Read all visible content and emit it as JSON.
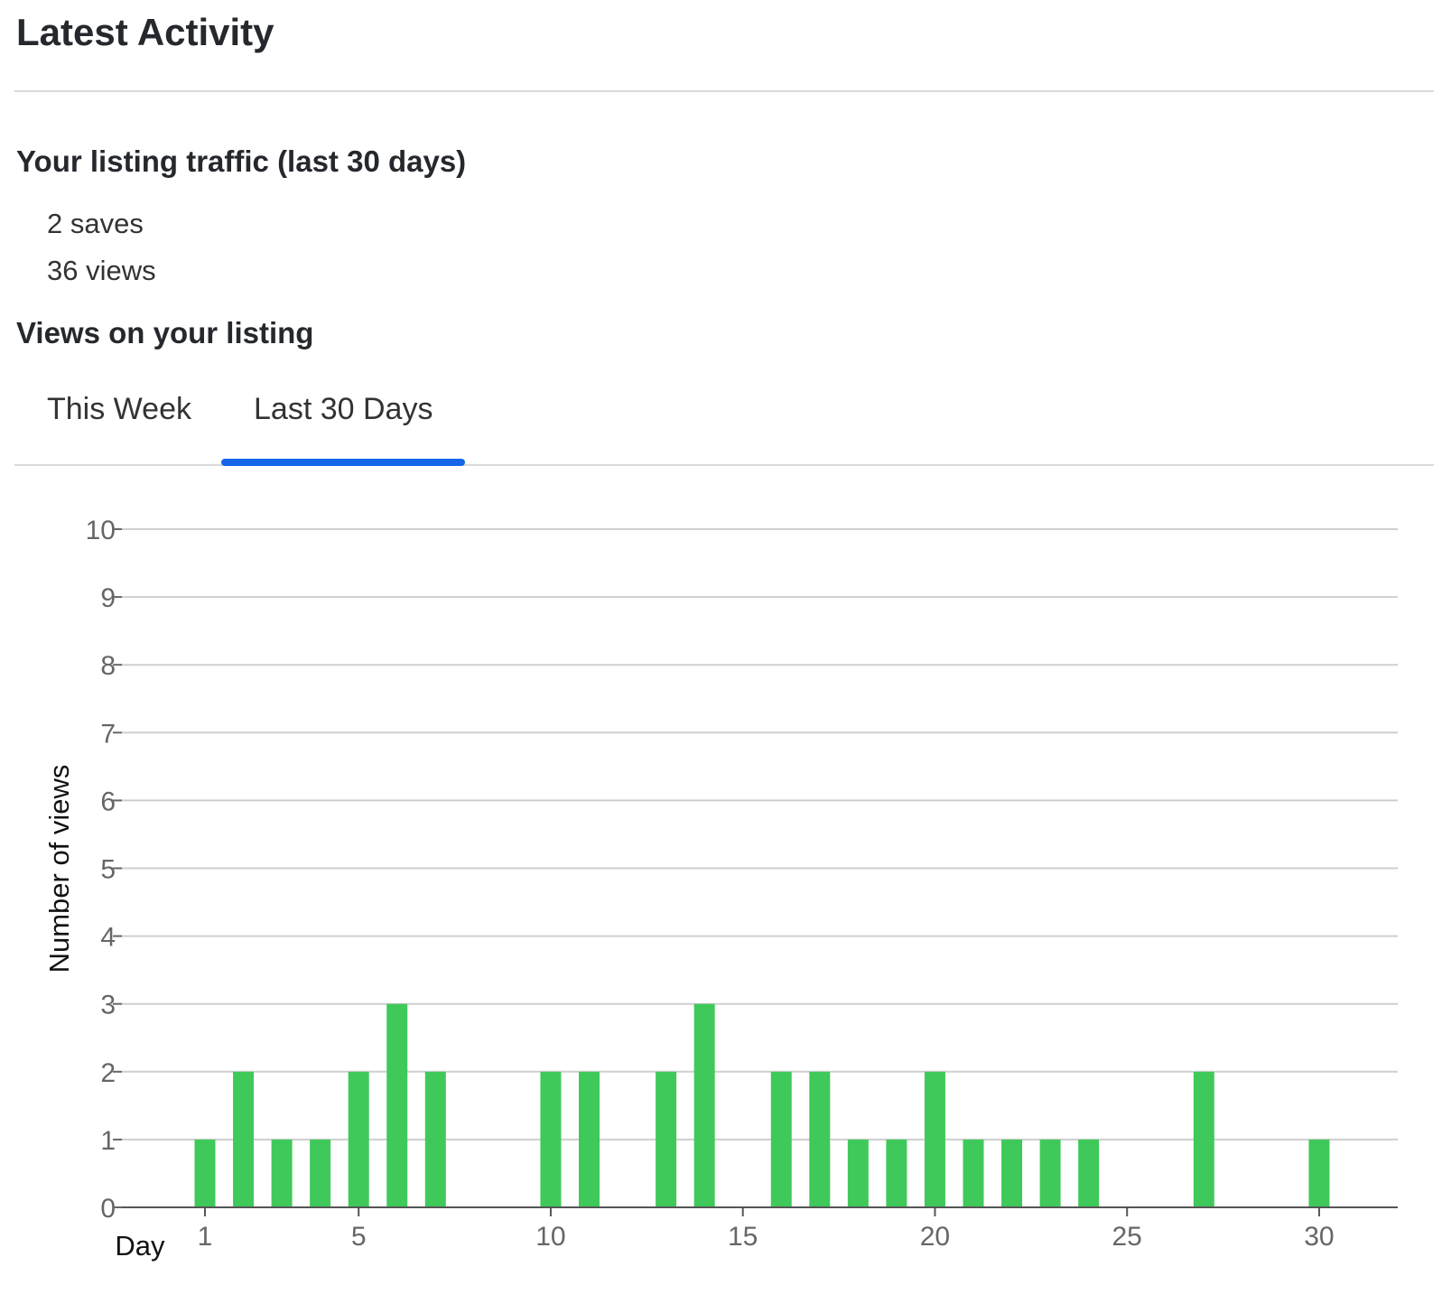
{
  "header": {
    "title": "Latest Activity"
  },
  "traffic": {
    "title": "Your listing traffic (last 30 days)",
    "saves": "2 saves",
    "views": "36 views"
  },
  "views_section": {
    "title": "Views on your listing",
    "tabs": [
      {
        "label": "This Week",
        "active": false
      },
      {
        "label": "Last 30 Days",
        "active": true
      }
    ]
  },
  "colors": {
    "bar": "#3fc95a",
    "tab_indicator": "#1565e8"
  },
  "chart_data": {
    "type": "bar",
    "title": "",
    "xlabel": "Day",
    "ylabel": "Number of views",
    "x": [
      1,
      2,
      3,
      4,
      5,
      6,
      7,
      8,
      9,
      10,
      11,
      12,
      13,
      14,
      15,
      16,
      17,
      18,
      19,
      20,
      21,
      22,
      23,
      24,
      25,
      26,
      27,
      28,
      29,
      30
    ],
    "values": [
      1,
      2,
      1,
      1,
      2,
      3,
      2,
      0,
      0,
      2,
      2,
      0,
      2,
      3,
      0,
      2,
      2,
      1,
      1,
      2,
      1,
      1,
      1,
      1,
      0,
      0,
      2,
      0,
      0,
      1
    ],
    "xticks": [
      1,
      5,
      10,
      15,
      20,
      25,
      30
    ],
    "yticks": [
      0,
      1,
      2,
      3,
      4,
      5,
      6,
      7,
      8,
      9,
      10
    ],
    "ylim": [
      0,
      10
    ],
    "grid": true
  }
}
